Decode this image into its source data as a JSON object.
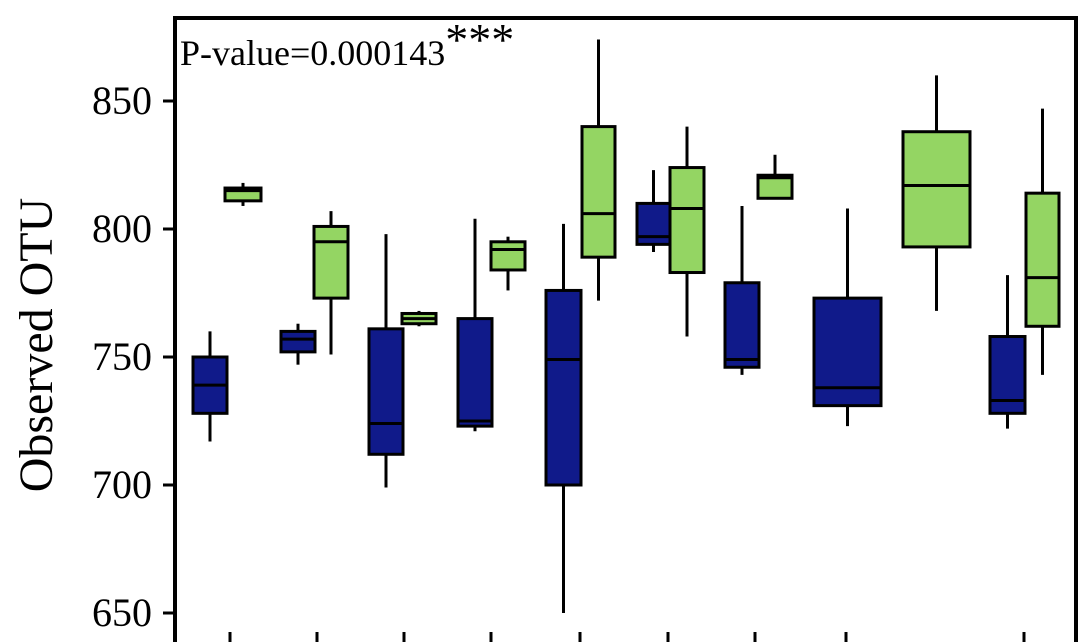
{
  "chart_data": {
    "type": "box",
    "title": "",
    "xlabel": "",
    "ylabel": "Observed OTU",
    "annotation": {
      "text": "P-value=0.000143",
      "stars": "***"
    },
    "ylim": [
      640,
      882
    ],
    "yticks": [
      650,
      700,
      750,
      800,
      850
    ],
    "grid": false,
    "legend": "none",
    "series_colors": {
      "dark": "#101a8a",
      "light": "#94d563",
      "outline": "#000000"
    },
    "boxes": [
      {
        "group": 1,
        "color": "dark",
        "min": 717,
        "q1": 728,
        "median": 739,
        "q3": 750,
        "max": 760
      },
      {
        "group": 1,
        "color": "light",
        "min": 809,
        "q1": 811,
        "median": 815,
        "q3": 816,
        "max": 818
      },
      {
        "group": 2,
        "color": "dark",
        "min": 747,
        "q1": 752,
        "median": 757,
        "q3": 760,
        "max": 763
      },
      {
        "group": 2,
        "color": "light",
        "min": 751,
        "q1": 773,
        "median": 795,
        "q3": 801,
        "max": 807
      },
      {
        "group": 3,
        "color": "dark",
        "min": 699,
        "q1": 712,
        "median": 724,
        "q3": 761,
        "max": 798
      },
      {
        "group": 3,
        "color": "light",
        "min": 762,
        "q1": 763,
        "median": 765,
        "q3": 767,
        "max": 768
      },
      {
        "group": 4,
        "color": "dark",
        "min": 721,
        "q1": 723,
        "median": 725,
        "q3": 765,
        "max": 804
      },
      {
        "group": 4,
        "color": "light",
        "min": 776,
        "q1": 784,
        "median": 792,
        "q3": 795,
        "max": 797
      },
      {
        "group": 5,
        "color": "dark",
        "min": 650,
        "q1": 700,
        "median": 749,
        "q3": 776,
        "max": 802
      },
      {
        "group": 5,
        "color": "light",
        "min": 772,
        "q1": 789,
        "median": 806,
        "q3": 840,
        "max": 874
      },
      {
        "group": 6,
        "color": "dark",
        "min": 791,
        "q1": 794,
        "median": 797,
        "q3": 810,
        "max": 823
      },
      {
        "group": 6,
        "color": "light",
        "min": 758,
        "q1": 783,
        "median": 808,
        "q3": 824,
        "max": 840
      },
      {
        "group": 7,
        "color": "dark",
        "min": 743,
        "q1": 746,
        "median": 749,
        "q3": 779,
        "max": 809
      },
      {
        "group": 7,
        "color": "light",
        "min": 812,
        "q1": 812,
        "median": 820,
        "q3": 821,
        "max": 829
      },
      {
        "group": 8,
        "color": "dark",
        "min": 723,
        "q1": 731,
        "median": 738,
        "q3": 773,
        "max": 808
      },
      {
        "group": 8,
        "color": "light",
        "min": 768,
        "q1": 793,
        "median": 817,
        "q3": 838,
        "max": 860
      },
      {
        "group": 9,
        "color": "dark",
        "min": 722,
        "q1": 728,
        "median": 733,
        "q3": 758,
        "max": 782
      },
      {
        "group": 9,
        "color": "light",
        "min": 743,
        "q1": 762,
        "median": 781,
        "q3": 814,
        "max": 847
      }
    ]
  }
}
